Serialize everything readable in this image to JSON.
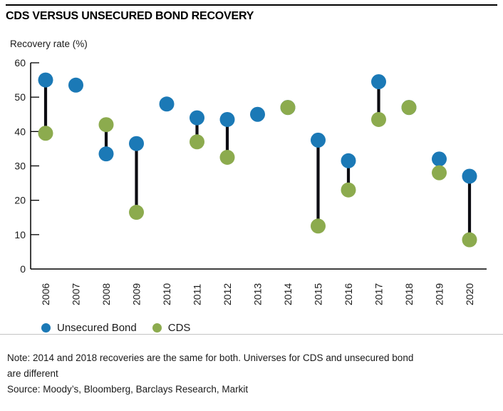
{
  "chart_data": {
    "type": "scatter",
    "title": "CDS VERSUS UNSECURED BOND RECOVERY",
    "ylabel": "Recovery rate (%)",
    "categories": [
      "2006",
      "2007",
      "2008",
      "2009",
      "2010",
      "2011",
      "2012",
      "2013",
      "2014",
      "2015",
      "2016",
      "2017",
      "2018",
      "2019",
      "2020"
    ],
    "series": [
      {
        "name": "Unsecured Bond",
        "color": "#1b79b6",
        "marker": "circle",
        "values": [
          55,
          53.5,
          33.5,
          36.5,
          48,
          44,
          43.5,
          45,
          47,
          37.5,
          31.5,
          54.5,
          47,
          32,
          27
        ]
      },
      {
        "name": "CDS",
        "color": "#8cab4e",
        "marker": "circle",
        "values": [
          39.5,
          null,
          42,
          16.5,
          null,
          37,
          32.5,
          null,
          47,
          12.5,
          23,
          43.5,
          47,
          28,
          8.5
        ]
      }
    ],
    "ylim": [
      0,
      60
    ],
    "yticks": [
      0,
      10,
      20,
      30,
      40,
      50,
      60
    ],
    "grid": false,
    "legend_position": "bottom-left",
    "connector_color": "#0c0c12",
    "axis_color": "#000000",
    "annotations": "Vertical black stems connect the bond and CDS values for each year; 2007, 2010 and 2013 show only the bond marker; 2014 and 2018 values are identical so a single green marker is visible"
  },
  "footer": {
    "note_lines": [
      "Note: 2014 and 2018 recoveries are the same for both. Universes for CDS and unsecured bond",
      "are different"
    ],
    "source": "Source: Moody’s, Bloomberg, Barclays Research, Markit"
  }
}
